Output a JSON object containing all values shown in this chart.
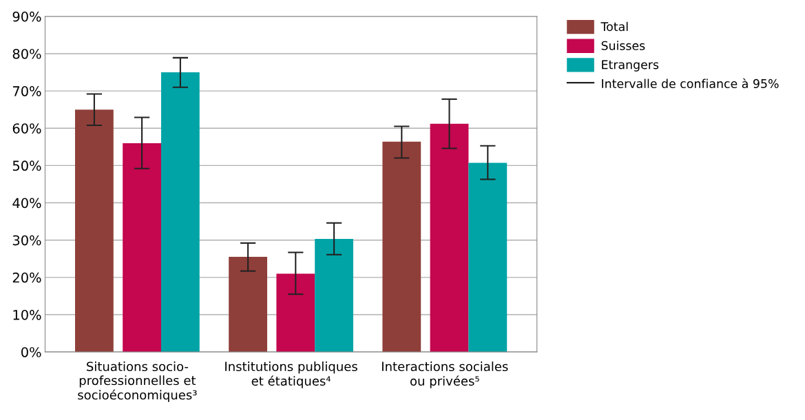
{
  "chart_data": {
    "type": "bar",
    "categories": [
      "Situations socio-\nprofessionnelles et\nsocioéconomiques³",
      "Institutions publiques\net étatiques⁴",
      "Interactions sociales\nou privées⁵"
    ],
    "series": [
      {
        "name": "Total",
        "color": "#8f3f3a",
        "values": [
          65,
          25.5,
          56.4
        ],
        "errors": [
          [
            60.8,
            69.2
          ],
          [
            21.7,
            29.2
          ],
          [
            52,
            60.5
          ]
        ]
      },
      {
        "name": "Suisses",
        "color": "#c4074f",
        "values": [
          56,
          21,
          61.2
        ],
        "errors": [
          [
            49.2,
            62.9
          ],
          [
            15.5,
            26.7
          ],
          [
            54.6,
            67.8
          ]
        ]
      },
      {
        "name": "Etrangers",
        "color": "#00a4a6",
        "values": [
          75,
          30.3,
          50.7
        ],
        "errors": [
          [
            71,
            78.9
          ],
          [
            26.1,
            34.6
          ],
          [
            46.3,
            55.3
          ]
        ]
      }
    ],
    "annotations": [
      "Intervalle de confiance à 95%"
    ],
    "ylim": [
      0,
      90
    ],
    "yticks": [
      {
        "value": 0,
        "label": "0%"
      },
      {
        "value": 10,
        "label": "10%"
      },
      {
        "value": 20,
        "label": "20%"
      },
      {
        "value": 30,
        "label": "30%"
      },
      {
        "value": 40,
        "label": "40%"
      },
      {
        "value": 50,
        "label": "50%"
      },
      {
        "value": 60,
        "label": "60%"
      },
      {
        "value": 70,
        "label": "70%"
      },
      {
        "value": 80,
        "label": "80%"
      },
      {
        "value": 90,
        "label": "90%"
      }
    ],
    "grid": "y",
    "legend": "top right"
  }
}
